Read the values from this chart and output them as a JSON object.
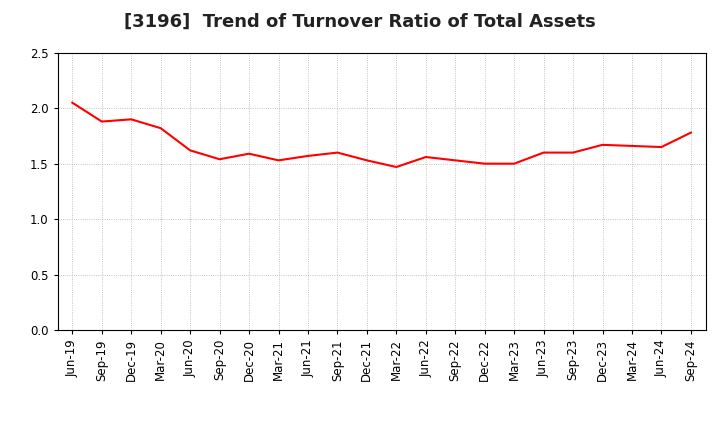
{
  "title": "[3196]  Trend of Turnover Ratio of Total Assets",
  "x_labels": [
    "Jun-19",
    "Sep-19",
    "Dec-19",
    "Mar-20",
    "Jun-20",
    "Sep-20",
    "Dec-20",
    "Mar-21",
    "Jun-21",
    "Sep-21",
    "Dec-21",
    "Mar-22",
    "Jun-22",
    "Sep-22",
    "Dec-22",
    "Mar-23",
    "Jun-23",
    "Sep-23",
    "Dec-23",
    "Mar-24",
    "Jun-24",
    "Sep-24"
  ],
  "values": [
    2.05,
    1.88,
    1.9,
    1.82,
    1.62,
    1.54,
    1.59,
    1.53,
    1.57,
    1.6,
    1.53,
    1.47,
    1.56,
    1.53,
    1.5,
    1.5,
    1.6,
    1.6,
    1.67,
    1.66,
    1.65,
    1.78
  ],
  "line_color": "#FF0000",
  "line_width": 1.5,
  "ylim": [
    0.0,
    2.5
  ],
  "yticks": [
    0.0,
    0.5,
    1.0,
    1.5,
    2.0,
    2.5
  ],
  "background_color": "#ffffff",
  "grid_color": "#aaaaaa",
  "title_fontsize": 13,
  "tick_fontsize": 8.5
}
